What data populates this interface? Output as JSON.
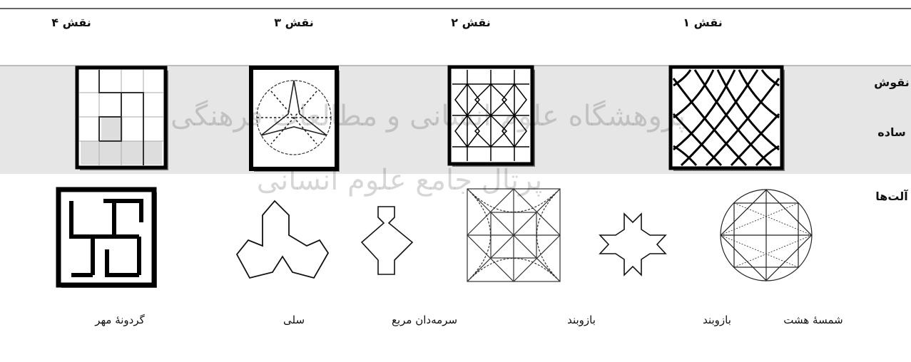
{
  "header": {
    "columns": [
      "نقش ۱",
      "نقش ۲",
      "نقش ۳",
      "نقش ۴"
    ]
  },
  "rows": [
    {
      "label": [
        "نقوش",
        "ساده"
      ]
    },
    {
      "label": [
        "آلت‌ها"
      ],
      "captions": [
        "شمسهٔ هشت",
        "بازوبند",
        "بازوبند",
        "سرمه‌دان مربع",
        "سلی",
        "گردونهٔ مهر"
      ]
    }
  ],
  "watermark": [
    "پژوهشگاه علوم انسانی و مطالعات فرهنگی",
    "پرتال جامع علوم انسانی"
  ]
}
